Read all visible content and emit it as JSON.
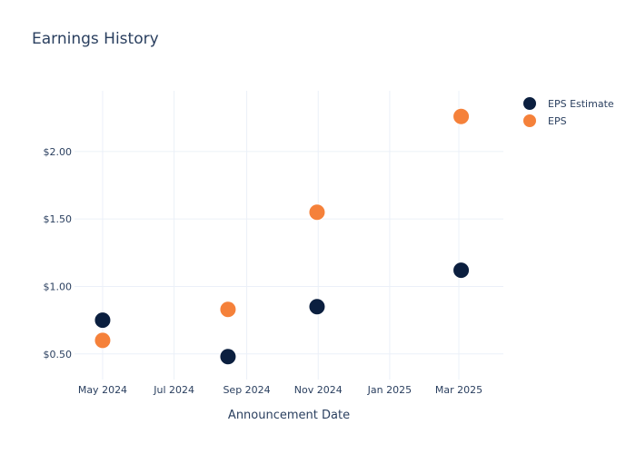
{
  "chart_data": {
    "type": "scatter",
    "title": "Earnings History",
    "xlabel": "Announcement Date",
    "ylabel": "",
    "x_tick_labels": [
      {
        "date": "2024-05-01",
        "label": "May 2024"
      },
      {
        "date": "2024-07-01",
        "label": "Jul 2024"
      },
      {
        "date": "2024-09-01",
        "label": "Sep 2024"
      },
      {
        "date": "2024-11-01",
        "label": "Nov 2024"
      },
      {
        "date": "2025-01-01",
        "label": "Jan 2025"
      },
      {
        "date": "2025-03-01",
        "label": "Mar 2025"
      }
    ],
    "y_ticks": [
      {
        "value": 0.5,
        "label": "$0.50"
      },
      {
        "value": 1.0,
        "label": "$1.00"
      },
      {
        "value": 1.5,
        "label": "$1.50"
      },
      {
        "value": 2.0,
        "label": "$2.00"
      }
    ],
    "xlim": [
      "2024-04-07",
      "2025-04-08"
    ],
    "ylim": [
      0.31,
      2.45
    ],
    "grid": true,
    "legend_position": "top-right",
    "series": [
      {
        "name": "EPS Estimate",
        "color": "#0b1f3f",
        "points": [
          {
            "x": "2024-05-01",
            "y": 0.75
          },
          {
            "x": "2024-08-16",
            "y": 0.48
          },
          {
            "x": "2024-10-31",
            "y": 0.85
          },
          {
            "x": "2025-03-03",
            "y": 1.12
          }
        ]
      },
      {
        "name": "EPS",
        "color": "#f5813a",
        "points": [
          {
            "x": "2024-05-01",
            "y": 0.6
          },
          {
            "x": "2024-08-16",
            "y": 0.83
          },
          {
            "x": "2024-10-31",
            "y": 1.55
          },
          {
            "x": "2025-03-03",
            "y": 2.26
          }
        ]
      }
    ]
  }
}
